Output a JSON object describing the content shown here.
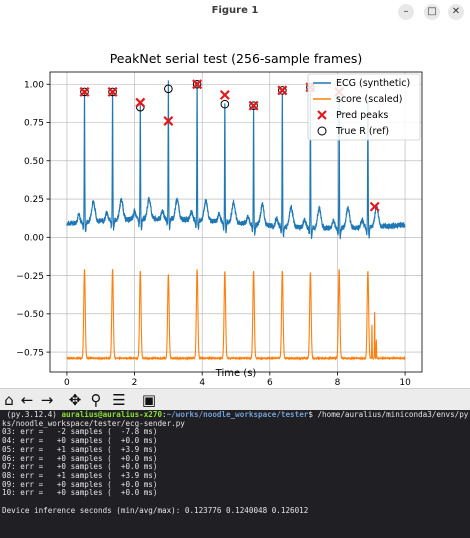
{
  "window": {
    "title": "Figure 1",
    "min_glyph": "–",
    "max_glyph": "□",
    "close_glyph": "✕"
  },
  "chart_data": {
    "type": "line",
    "title": "PeakNet serial test (256-sample frames)",
    "xlabel": "Time (s)",
    "ylabel": "",
    "xlim": [
      -0.5,
      10.5
    ],
    "ylim": [
      -0.88,
      1.08
    ],
    "xticks": [
      "0",
      "2",
      "4",
      "6",
      "8",
      "10"
    ],
    "xtick_values": [
      0,
      2,
      4,
      6,
      8,
      10
    ],
    "yticks": [
      "1.00",
      "0.75",
      "0.50",
      "0.25",
      "0.00",
      "−0.25",
      "−0.50",
      "−0.75"
    ],
    "ytick_values": [
      1.0,
      0.75,
      0.5,
      0.25,
      0.0,
      -0.25,
      -0.5,
      -0.75
    ],
    "grid": true,
    "legend_position": "top-right",
    "r_peak_times": [
      0.52,
      1.35,
      2.17,
      3.0,
      3.85,
      4.67,
      5.52,
      6.37,
      7.2,
      8.05,
      8.9
    ],
    "series": [
      {
        "name": "ECG (synthetic)",
        "color": "#1f77b4",
        "style": "line",
        "baseline": 0.0,
        "peak_heights": [
          0.95,
          0.95,
          0.85,
          0.97,
          1.0,
          0.88,
          0.86,
          0.96,
          0.98,
          0.95,
          0.92
        ]
      },
      {
        "name": "score (scaled)",
        "color": "#ff7f0e",
        "style": "line",
        "baseline": -0.79,
        "peak_heights": [
          -0.21,
          -0.21,
          -0.22,
          -0.24,
          -0.21,
          -0.22,
          -0.22,
          -0.22,
          -0.23,
          -0.21,
          -0.22
        ]
      },
      {
        "name": "Pred peaks",
        "color": "#e31a1c",
        "style": "x-marker",
        "x": [
          0.52,
          1.35,
          2.17,
          3.0,
          3.85,
          4.67,
          5.52,
          6.37,
          7.2,
          8.05,
          9.1
        ],
        "y": [
          0.95,
          0.95,
          0.88,
          0.76,
          1.0,
          0.93,
          0.86,
          0.96,
          0.98,
          0.95,
          0.2
        ]
      },
      {
        "name": "True R (ref)",
        "color": "#000000",
        "style": "open-circle",
        "x": [
          0.52,
          1.35,
          2.17,
          3.0,
          3.85,
          4.67,
          5.52,
          6.37,
          7.2
        ],
        "y": [
          0.95,
          0.95,
          0.85,
          0.97,
          1.0,
          0.87,
          0.86,
          0.96,
          0.98
        ]
      }
    ]
  },
  "toolbar": {
    "home_icon": "⌂",
    "back_icon": "←",
    "forward_icon": "→",
    "pan_icon": "✥",
    "zoom_icon": "⚲",
    "configure_icon": "☰",
    "save_icon": "▣"
  },
  "terminal": {
    "prompt_env": " (py.3.12.4) ",
    "prompt_user": "auralius@auralius-x270",
    "prompt_sep": ":",
    "prompt_path": "~/works/noodle_workspace/tester",
    "prompt_cmd": "$ /home/auralius/miniconda3/envs/py",
    "wrap_line": "ks/noodle_workspace/tester/ecg-sender.py",
    "lines": [
      "03: err =   -2 samples (  -7.8 ms)",
      "04: err =   +0 samples (  +0.0 ms)",
      "05: err =   +1 samples (  +3.9 ms)",
      "06: err =   +0 samples (  +0.0 ms)",
      "07: err =   +0 samples (  +0.0 ms)",
      "08: err =   +1 samples (  +3.9 ms)",
      "09: err =   +0 samples (  +0.0 ms)",
      "10: err =   +0 samples (  +0.0 ms)",
      "",
      "Device inference seconds (min/avg/max): 0.123776 0.1240048 0.126012"
    ]
  }
}
